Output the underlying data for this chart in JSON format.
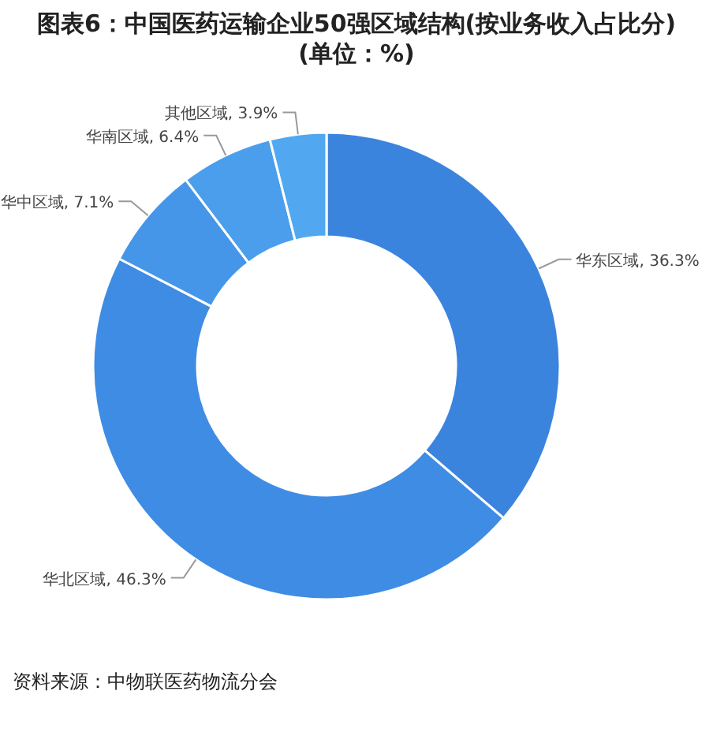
{
  "chart_data": {
    "type": "donut",
    "title": "图表6：中国医药运输企业50强区域结构(按业务收入占比分)(单位：%)",
    "categories": [
      "华东区域",
      "华北区域",
      "华中区域",
      "华南区域",
      "其他区域"
    ],
    "values": [
      36.3,
      46.3,
      7.1,
      6.4,
      3.9
    ],
    "value_labels": [
      "36.3%",
      "46.3%",
      "7.1%",
      "6.4%",
      "3.9%"
    ],
    "colors": [
      "#3b84de",
      "#3f8ce4",
      "#4596e8",
      "#4a9eec",
      "#52a8f0"
    ],
    "annotations": [
      "资料来源：中物联医药物流分会"
    ]
  }
}
